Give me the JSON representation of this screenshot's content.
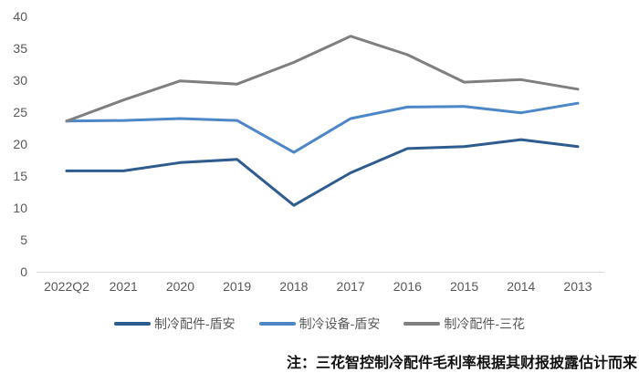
{
  "chart_data": {
    "type": "line",
    "title": "",
    "xlabel": "",
    "ylabel": "",
    "categories": [
      "2022Q2",
      "2021",
      "2020",
      "2019",
      "2018",
      "2017",
      "2016",
      "2015",
      "2014",
      "2013"
    ],
    "series": [
      {
        "name": "制冷配件-盾安",
        "color": "#2E5C8F",
        "values": [
          15.8,
          15.8,
          17.1,
          17.6,
          10.4,
          15.5,
          19.3,
          19.6,
          20.7,
          19.6
        ]
      },
      {
        "name": "制冷设备-盾安",
        "color": "#4E87C8",
        "values": [
          23.6,
          23.7,
          24.0,
          23.7,
          18.7,
          24.0,
          25.8,
          25.9,
          24.9,
          26.4
        ]
      },
      {
        "name": "制冷配件-三花",
        "color": "#7F7F7F",
        "values": [
          23.6,
          26.9,
          29.9,
          29.4,
          32.8,
          36.9,
          34.0,
          29.7,
          30.1,
          28.6
        ]
      }
    ],
    "ylim": [
      0,
      40
    ],
    "ytick_step": 5,
    "grid": false,
    "legend_position": "bottom"
  },
  "note": "注：三花智控制冷配件毛利率根据其财报披露估计而来",
  "colors": {
    "axis_line": "#D9D9D9",
    "tick_label": "#595959",
    "legend_label": "#595959"
  }
}
